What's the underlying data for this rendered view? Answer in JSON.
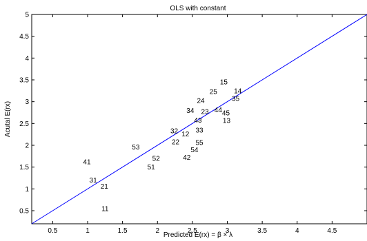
{
  "chart_data": {
    "type": "scatter",
    "title": "OLS with constant",
    "xlabel": "Predicted E(rx) = β × λ",
    "ylabel": "Acutal E(rx)",
    "xlim": [
      0.2,
      5.0
    ],
    "ylim": [
      0.2,
      5.0
    ],
    "xticks": [
      0.5,
      1,
      1.5,
      2,
      2.5,
      3,
      3.5,
      4,
      4.5
    ],
    "xtick_labels": [
      "0.5",
      "1",
      "1.5",
      "2",
      "2.5",
      "3",
      "3.5",
      "4",
      "4.5"
    ],
    "yticks": [
      0.5,
      1,
      1.5,
      2,
      2.5,
      3,
      3.5,
      4,
      4.5,
      5
    ],
    "ytick_labels": [
      "0.5",
      "1",
      "1.5",
      "2",
      "2.5",
      "3",
      "3.5",
      "4",
      "4.5",
      "5"
    ],
    "grid": false,
    "line_color": "#0000ff",
    "fit_line": {
      "x": [
        0.2,
        5.0
      ],
      "y": [
        0.2,
        5.0
      ]
    },
    "points": [
      {
        "label": "15",
        "x": 2.95,
        "y": 3.45
      },
      {
        "label": "14",
        "x": 3.15,
        "y": 3.25
      },
      {
        "label": "25",
        "x": 2.8,
        "y": 3.23
      },
      {
        "label": "35",
        "x": 3.12,
        "y": 3.07
      },
      {
        "label": "24",
        "x": 2.62,
        "y": 3.03
      },
      {
        "label": "34",
        "x": 2.47,
        "y": 2.8
      },
      {
        "label": "23",
        "x": 2.68,
        "y": 2.77
      },
      {
        "label": "44",
        "x": 2.87,
        "y": 2.81
      },
      {
        "label": "45",
        "x": 2.98,
        "y": 2.74
      },
      {
        "label": "43",
        "x": 2.58,
        "y": 2.58
      },
      {
        "label": "13",
        "x": 2.99,
        "y": 2.57
      },
      {
        "label": "33",
        "x": 2.6,
        "y": 2.35
      },
      {
        "label": "32",
        "x": 2.24,
        "y": 2.33
      },
      {
        "label": "12",
        "x": 2.4,
        "y": 2.26
      },
      {
        "label": "22",
        "x": 2.26,
        "y": 2.08
      },
      {
        "label": "55",
        "x": 2.6,
        "y": 2.06
      },
      {
        "label": "53",
        "x": 1.69,
        "y": 1.96
      },
      {
        "label": "54",
        "x": 2.53,
        "y": 1.9
      },
      {
        "label": "42",
        "x": 2.42,
        "y": 1.72
      },
      {
        "label": "52",
        "x": 1.98,
        "y": 1.7
      },
      {
        "label": "41",
        "x": 0.99,
        "y": 1.62
      },
      {
        "label": "51",
        "x": 1.91,
        "y": 1.5
      },
      {
        "label": "31",
        "x": 1.08,
        "y": 1.2
      },
      {
        "label": "21",
        "x": 1.24,
        "y": 1.06
      },
      {
        "label": "11",
        "x": 1.25,
        "y": 0.55
      }
    ]
  }
}
